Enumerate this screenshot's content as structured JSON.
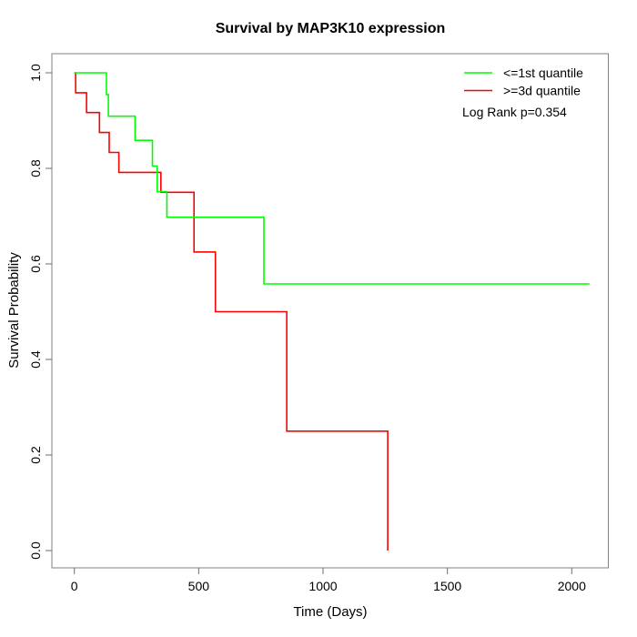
{
  "title": "Survival by MAP3K10 expression",
  "axes": {
    "x": {
      "label": "Time (Days)",
      "tick_labels": [
        "0",
        "500",
        "1000",
        "1500",
        "2000"
      ],
      "tick_values": [
        0,
        500,
        1000,
        1500,
        2000
      ]
    },
    "y": {
      "label": "Survival Probability",
      "tick_labels": [
        "0.0",
        "0.2",
        "0.4",
        "0.6",
        "0.8",
        "1.0"
      ],
      "tick_values": [
        0,
        0.2,
        0.4,
        0.6,
        0.8,
        1.0
      ]
    }
  },
  "legend": {
    "items": [
      {
        "label": "<=1st quantile",
        "color": "#00ff00"
      },
      {
        "label": ">=3d quantile",
        "color": "#ff0000"
      }
    ],
    "note": "Log Rank p=0.354"
  },
  "colors": {
    "frame": "#808080",
    "tick": "#6e6e6e",
    "text": "#000000",
    "background": "#ffffff"
  },
  "chart_data": {
    "type": "line",
    "subtype": "kaplan-meier-step",
    "title": "Survival by MAP3K10 expression",
    "xlabel": "Time (Days)",
    "ylabel": "Survival Probability",
    "xlim": [
      0,
      2075
    ],
    "ylim": [
      0,
      1
    ],
    "grid": false,
    "legend_position": "top-right",
    "annotations": [
      "Log Rank p=0.354"
    ],
    "series": [
      {
        "name": "<=1st quantile",
        "color": "#00ff00",
        "step": true,
        "points": [
          [
            0,
            1.0
          ],
          [
            129,
            0.9545
          ],
          [
            137,
            0.9091
          ],
          [
            244,
            0.8586
          ],
          [
            314,
            0.8049
          ],
          [
            333,
            0.7513
          ],
          [
            372,
            0.6977
          ],
          [
            762,
            0.5581
          ],
          [
            2071,
            0.5581
          ]
        ]
      },
      {
        "name": ">=3d quantile",
        "color": "#ff0000",
        "step": true,
        "points": [
          [
            0,
            1.0
          ],
          [
            5,
            0.9583
          ],
          [
            49,
            0.9167
          ],
          [
            101,
            0.875
          ],
          [
            140,
            0.8333
          ],
          [
            179,
            0.7917
          ],
          [
            348,
            0.75
          ],
          [
            481,
            0.625
          ],
          [
            567,
            0.5
          ],
          [
            854,
            0.25
          ],
          [
            1260,
            0.0
          ]
        ]
      }
    ]
  }
}
